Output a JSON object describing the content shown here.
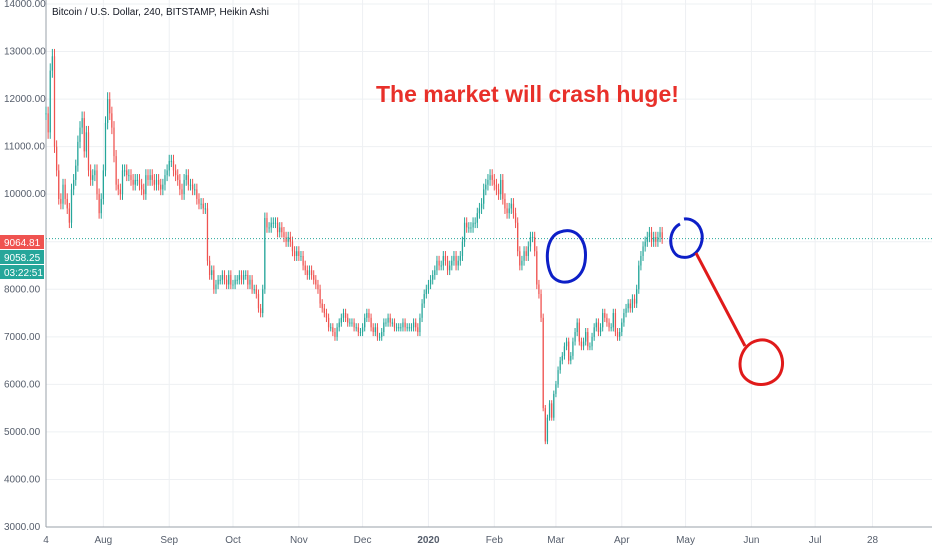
{
  "chart_data": {
    "type": "candlestick",
    "title": "Bitcoin / U.S. Dollar, 240, BITSTAMP, Heikin Ashi",
    "ylim": [
      3000,
      14000
    ],
    "y_ticks": [
      "3000.00",
      "4000.00",
      "5000.00",
      "6000.00",
      "7000.00",
      "8000.00",
      "9000.00",
      "10000.00",
      "11000.00",
      "12000.00",
      "13000.00",
      "14000.00"
    ],
    "x_ticks": [
      {
        "label": "4",
        "idx": 0
      },
      {
        "label": "Aug",
        "idx": 27
      },
      {
        "label": "Sep",
        "idx": 58
      },
      {
        "label": "Oct",
        "idx": 88
      },
      {
        "label": "Nov",
        "idx": 119
      },
      {
        "label": "Dec",
        "idx": 149
      },
      {
        "label": "2020",
        "idx": 180
      },
      {
        "label": "Feb",
        "idx": 211
      },
      {
        "label": "Mar",
        "idx": 240
      },
      {
        "label": "Apr",
        "idx": 271
      },
      {
        "label": "May",
        "idx": 301
      },
      {
        "label": "Jun",
        "idx": 332
      },
      {
        "label": "Jul",
        "idx": 362
      },
      {
        "label": "28",
        "idx": 389
      }
    ],
    "x_range": [
      0,
      417
    ],
    "series": [
      {
        "name": "",
        "values": [
          11700,
          11300,
          12600,
          12900,
          11000,
          10500,
          9900,
          9800,
          10200,
          9900,
          9700,
          9400,
          10100,
          10300,
          10600,
          11100,
          11400,
          11600,
          10900,
          11300,
          10500,
          10300,
          10400,
          10500,
          10000,
          9600,
          9900,
          10500,
          11500,
          12000,
          11700,
          11400,
          10800,
          10200,
          10100,
          10000,
          10500,
          10500,
          10400,
          10400,
          10300,
          10200,
          10300,
          10300,
          10200,
          10100,
          10000,
          10400,
          10300,
          10400,
          10300,
          10200,
          10300,
          10200,
          10100,
          10200,
          10400,
          10500,
          10700,
          10700,
          10500,
          10400,
          10300,
          10100,
          10000,
          10300,
          10400,
          10200,
          10200,
          10100,
          10100,
          9900,
          9800,
          9800,
          9700,
          9700,
          8600,
          8300,
          8400,
          8000,
          8100,
          8200,
          8200,
          8300,
          8200,
          8100,
          8300,
          8100,
          8100,
          8200,
          8200,
          8300,
          8200,
          8300,
          8300,
          8100,
          8200,
          8000,
          8000,
          7900,
          7600,
          7500,
          8000,
          9500,
          9300,
          9300,
          9400,
          9400,
          9400,
          9200,
          9300,
          9200,
          9100,
          9000,
          9100,
          9000,
          8800,
          8700,
          8800,
          8700,
          8700,
          8500,
          8400,
          8300,
          8400,
          8300,
          8200,
          8100,
          8000,
          7700,
          7600,
          7500,
          7400,
          7200,
          7200,
          7100,
          7000,
          7200,
          7300,
          7400,
          7500,
          7400,
          7300,
          7300,
          7300,
          7200,
          7200,
          7100,
          7100,
          7200,
          7400,
          7500,
          7400,
          7200,
          7100,
          7200,
          7000,
          7000,
          7100,
          7300,
          7300,
          7400,
          7300,
          7300,
          7200,
          7200,
          7200,
          7200,
          7300,
          7200,
          7200,
          7200,
          7200,
          7300,
          7200,
          7100,
          7400,
          7700,
          7900,
          8000,
          8100,
          8200,
          8300,
          8400,
          8600,
          8500,
          8500,
          8700,
          8600,
          8400,
          8500,
          8600,
          8700,
          8500,
          8600,
          8700,
          9000,
          9400,
          9300,
          9300,
          9300,
          9400,
          9400,
          9600,
          9700,
          9800,
          10100,
          10200,
          10300,
          10400,
          10300,
          10200,
          10100,
          10000,
          10300,
          9900,
          9700,
          9600,
          9700,
          9800,
          9600,
          9400,
          8800,
          8500,
          8600,
          8800,
          8700,
          8900,
          9100,
          9100,
          8800,
          8100,
          7900,
          7400,
          5500,
          4800,
          5300,
          5600,
          5300,
          5800,
          6000,
          6300,
          6500,
          6600,
          6800,
          6900,
          6500,
          6600,
          6900,
          7100,
          7300,
          6900,
          6800,
          6900,
          7100,
          6800,
          6800,
          7000,
          7200,
          7300,
          7100,
          7200,
          7500,
          7400,
          7300,
          7200,
          7200,
          7500,
          7100,
          7000,
          7100,
          7300,
          7500,
          7600,
          7700,
          7600,
          7800,
          7700,
          8000,
          8500,
          8700,
          8900,
          9000,
          9100,
          9200,
          9000,
          9100,
          9000,
          9100,
          9200,
          9064
        ]
      }
    ],
    "last_price": "9064.81",
    "bid_price": "9058.25",
    "countdown": "03:22:51",
    "annotation": "The market will crash huge!",
    "grid": true
  },
  "colors": {
    "up": "#26a69a",
    "down": "#ef5350",
    "annotation": "#e8302a",
    "drawing_blue": "#0d1fc7",
    "drawing_red": "#e01a1a"
  }
}
